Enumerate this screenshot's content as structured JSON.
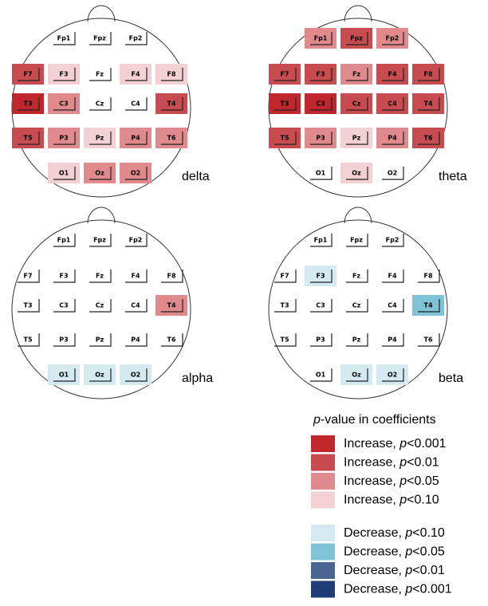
{
  "electrodes": [
    "Fp1",
    "Fpz",
    "Fp2",
    "F7",
    "F3",
    "Fz",
    "F4",
    "F8",
    "T3",
    "C3",
    "Cz",
    "C4",
    "T4",
    "T5",
    "P3",
    "Pz",
    "P4",
    "T6",
    "O1",
    "Oz",
    "O2"
  ],
  "panels": [
    {
      "label": "delta",
      "levels": [
        null,
        null,
        null,
        1,
        3,
        null,
        3,
        3,
        0,
        2,
        null,
        null,
        1,
        1,
        2,
        3,
        2,
        2,
        3,
        2,
        2
      ]
    },
    {
      "label": "theta",
      "levels": [
        2,
        1,
        2,
        1,
        1,
        2,
        1,
        1,
        0,
        0,
        1,
        1,
        1,
        1,
        2,
        3,
        2,
        1,
        null,
        3,
        null
      ]
    },
    {
      "label": "alpha",
      "levels": [
        null,
        null,
        null,
        null,
        null,
        null,
        null,
        null,
        null,
        null,
        null,
        null,
        2,
        null,
        null,
        null,
        null,
        null,
        4,
        4,
        4
      ]
    },
    {
      "label": "beta",
      "levels": [
        null,
        null,
        null,
        null,
        4,
        null,
        null,
        null,
        null,
        null,
        null,
        null,
        5,
        null,
        null,
        null,
        null,
        null,
        null,
        4,
        4
      ]
    }
  ],
  "legend": {
    "title": {
      "italic": "p",
      "rest": "-value in coefficients"
    },
    "items": [
      {
        "prefix": "Increase, ",
        "italic": "p",
        "suffix": "<0.001",
        "color": "#c0272d"
      },
      {
        "prefix": "Increase, ",
        "italic": "p",
        "suffix": "<0.01",
        "color": "#c84b50"
      },
      {
        "prefix": "Increase, ",
        "italic": "p",
        "suffix": "<0.05",
        "color": "#e08a8e"
      },
      {
        "prefix": "Increase, ",
        "italic": "p",
        "suffix": "<0.10",
        "color": "#f2d0d3"
      },
      {
        "prefix": "Decrease, ",
        "italic": "p",
        "suffix": "<0.10",
        "color": "#d4e9f0"
      },
      {
        "prefix": "Decrease, ",
        "italic": "p",
        "suffix": "<0.05",
        "color": "#7fc3d6"
      },
      {
        "prefix": "Decrease, ",
        "italic": "p",
        "suffix": "<0.01",
        "color": "#4a6591"
      },
      {
        "prefix": "Decrease, ",
        "italic": "p",
        "suffix": "<0.001",
        "color": "#1f3c78"
      }
    ]
  }
}
